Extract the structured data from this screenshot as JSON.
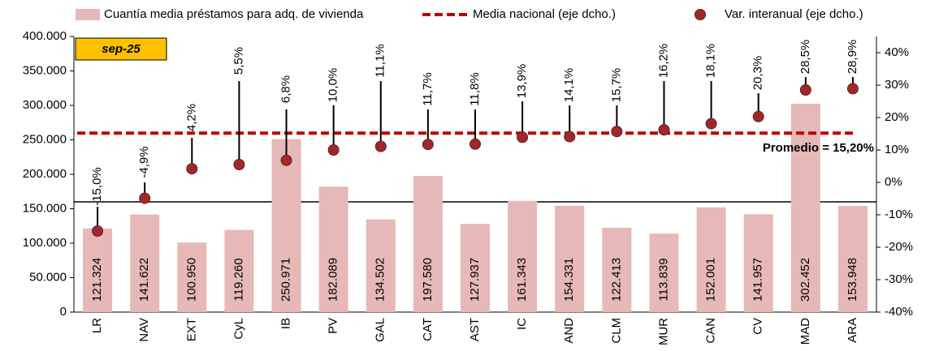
{
  "chart_data": {
    "type": "combo",
    "categories": [
      "LR",
      "NAV",
      "EXT",
      "CyL",
      "IB",
      "PV",
      "GAL",
      "CAT",
      "AST",
      "IC",
      "AND",
      "CLM",
      "MUR",
      "CAN",
      "CV",
      "MAD",
      "ARA"
    ],
    "series": [
      {
        "name": "Cuantía media préstamos para adq. de vivienda",
        "type": "bar",
        "color": "#e6b8b7",
        "values": [
          121324,
          141622,
          100950,
          119260,
          250971,
          182089,
          134502,
          197580,
          127937,
          161343,
          154331,
          122413,
          113839,
          152001,
          141957,
          302452,
          153948
        ],
        "value_labels": [
          "121.324",
          "141.622",
          "100.950",
          "119.260",
          "250.971",
          "182.089",
          "134.502",
          "197.580",
          "127.937",
          "161.343",
          "154.331",
          "122.413",
          "113.839",
          "152.001",
          "141.957",
          "302.452",
          "153.948"
        ]
      },
      {
        "name": "Var. interanual (eje dcho.)",
        "type": "scatter",
        "axis": "y2",
        "color": "#a0282d",
        "values": [
          -15.0,
          -4.9,
          4.2,
          5.5,
          6.8,
          10.0,
          11.1,
          11.7,
          11.8,
          13.9,
          14.1,
          15.7,
          16.2,
          18.1,
          20.3,
          28.5,
          28.9
        ],
        "value_labels": [
          "-15,0%",
          "-4,9%",
          "4,2%",
          "5,5%",
          "6,8%",
          "10,0%",
          "11,1%",
          "11,7%",
          "11,8%",
          "13,9%",
          "14,1%",
          "15,7%",
          "16,2%",
          "18,1%",
          "20,3%",
          "28,5%",
          "28,9%"
        ]
      }
    ],
    "reference_line": {
      "name": "Media nacional (eje dcho.)",
      "axis": "y2",
      "value": 15.2,
      "color": "#c00000",
      "label": "Promedio = 15,20%"
    },
    "annotation": "sep-25",
    "ylim": [
      0,
      400000
    ],
    "yticks": [
      {
        "value": 0,
        "label": "0"
      },
      {
        "value": 50000,
        "label": "50.000"
      },
      {
        "value": 100000,
        "label": "100.000"
      },
      {
        "value": 150000,
        "label": "150.000"
      },
      {
        "value": 200000,
        "label": "200.000"
      },
      {
        "value": 250000,
        "label": "250.000"
      },
      {
        "value": 300000,
        "label": "300.000"
      },
      {
        "value": 350000,
        "label": "350.000"
      },
      {
        "value": 400000,
        "label": "400.000"
      }
    ],
    "y2lim": [
      -40,
      45
    ],
    "y2ticks": [
      {
        "value": -40,
        "label": "-40%"
      },
      {
        "value": -30,
        "label": "-30%"
      },
      {
        "value": -20,
        "label": "-20%"
      },
      {
        "value": -10,
        "label": "-10%"
      },
      {
        "value": 0,
        "label": "0%"
      },
      {
        "value": 10,
        "label": "10%"
      },
      {
        "value": 20,
        "label": "20%"
      },
      {
        "value": 30,
        "label": "30%"
      },
      {
        "value": 40,
        "label": "40%"
      }
    ]
  }
}
